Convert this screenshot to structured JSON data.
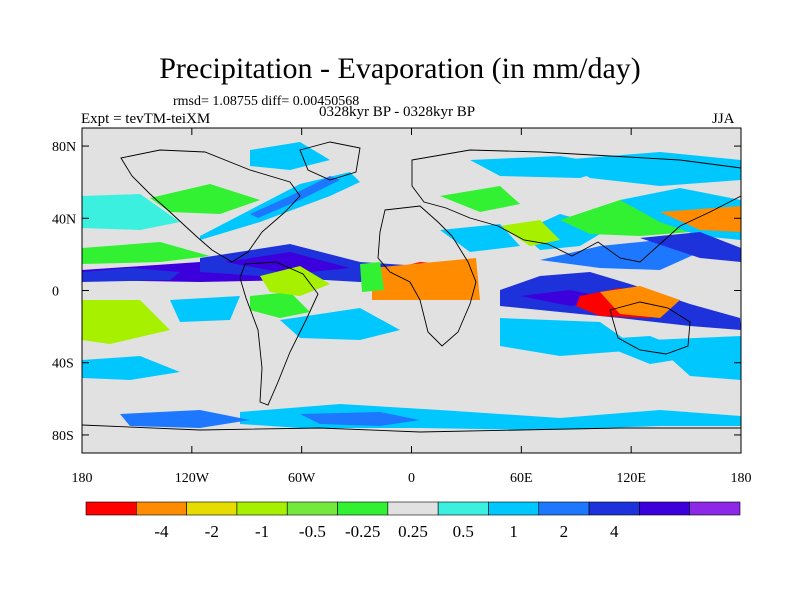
{
  "title": "Precipitation - Evaporation (in mm/day)",
  "stats": "rmsd= 1.08755 diff= 0.00450568",
  "expt": "Expt = tevTM-teiXM",
  "period": "0328kyr BP - 0328kyr BP",
  "season": "JJA",
  "lat_labels": [
    "80N",
    "40N",
    "0",
    "40S",
    "80S"
  ],
  "lon_labels": [
    "180",
    "120W",
    "60W",
    "0",
    "60E",
    "120E",
    "180"
  ],
  "colorbar": {
    "colors": [
      "#ff0000",
      "#ff8c00",
      "#e6dc00",
      "#a6f000",
      "#74e83c",
      "#32f032",
      "#e1e1e1",
      "#3cf0e0",
      "#00c8ff",
      "#1e78ff",
      "#1e32dc",
      "#3c00dc",
      "#8c28e6"
    ],
    "labels": [
      "-4",
      "-2",
      "-1",
      "-0.5",
      "-0.25",
      "0.25",
      "0.5",
      "1",
      "2",
      "4"
    ]
  },
  "colors": {
    "background": "#e1e1e1",
    "coast": "#000000"
  }
}
